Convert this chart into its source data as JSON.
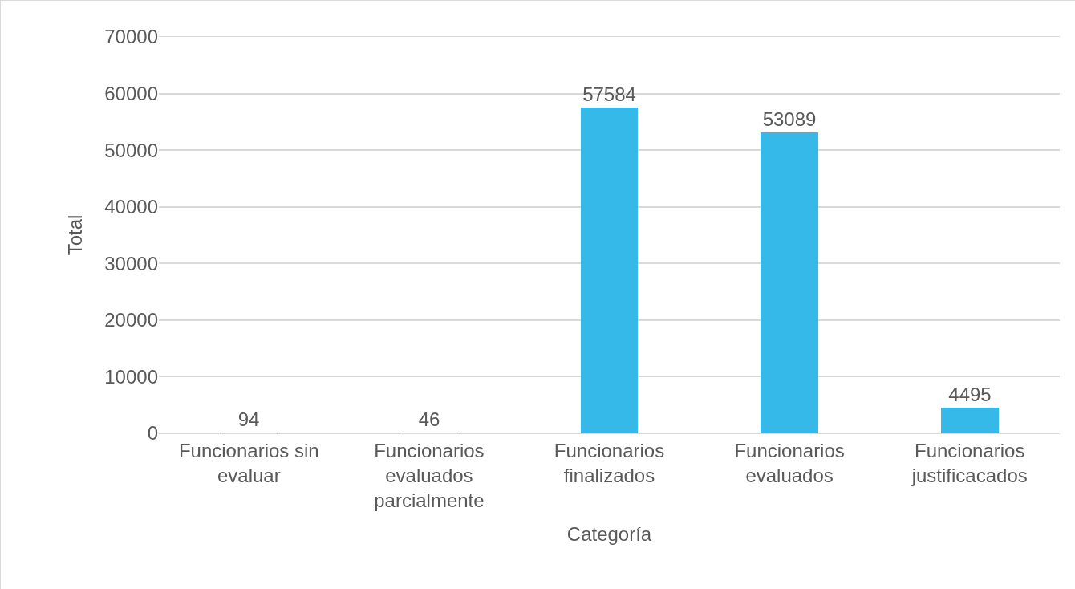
{
  "chart_data": {
    "type": "bar",
    "xlabel": "Categoría",
    "ylabel": "Total",
    "categories": [
      "Funcionarios sin evaluar",
      "Funcionarios evaluados parcialmente",
      "Funcionarios finalizados",
      "Funcionarios evaluados",
      "Funcionarios justificacados"
    ],
    "values": [
      94,
      46,
      57584,
      53089,
      4495
    ],
    "color": "#35b9e9",
    "ylim": [
      0,
      70000
    ],
    "yticks": [
      0,
      10000,
      20000,
      30000,
      40000,
      50000,
      60000,
      70000
    ],
    "grid": "y",
    "data_labels": true
  }
}
